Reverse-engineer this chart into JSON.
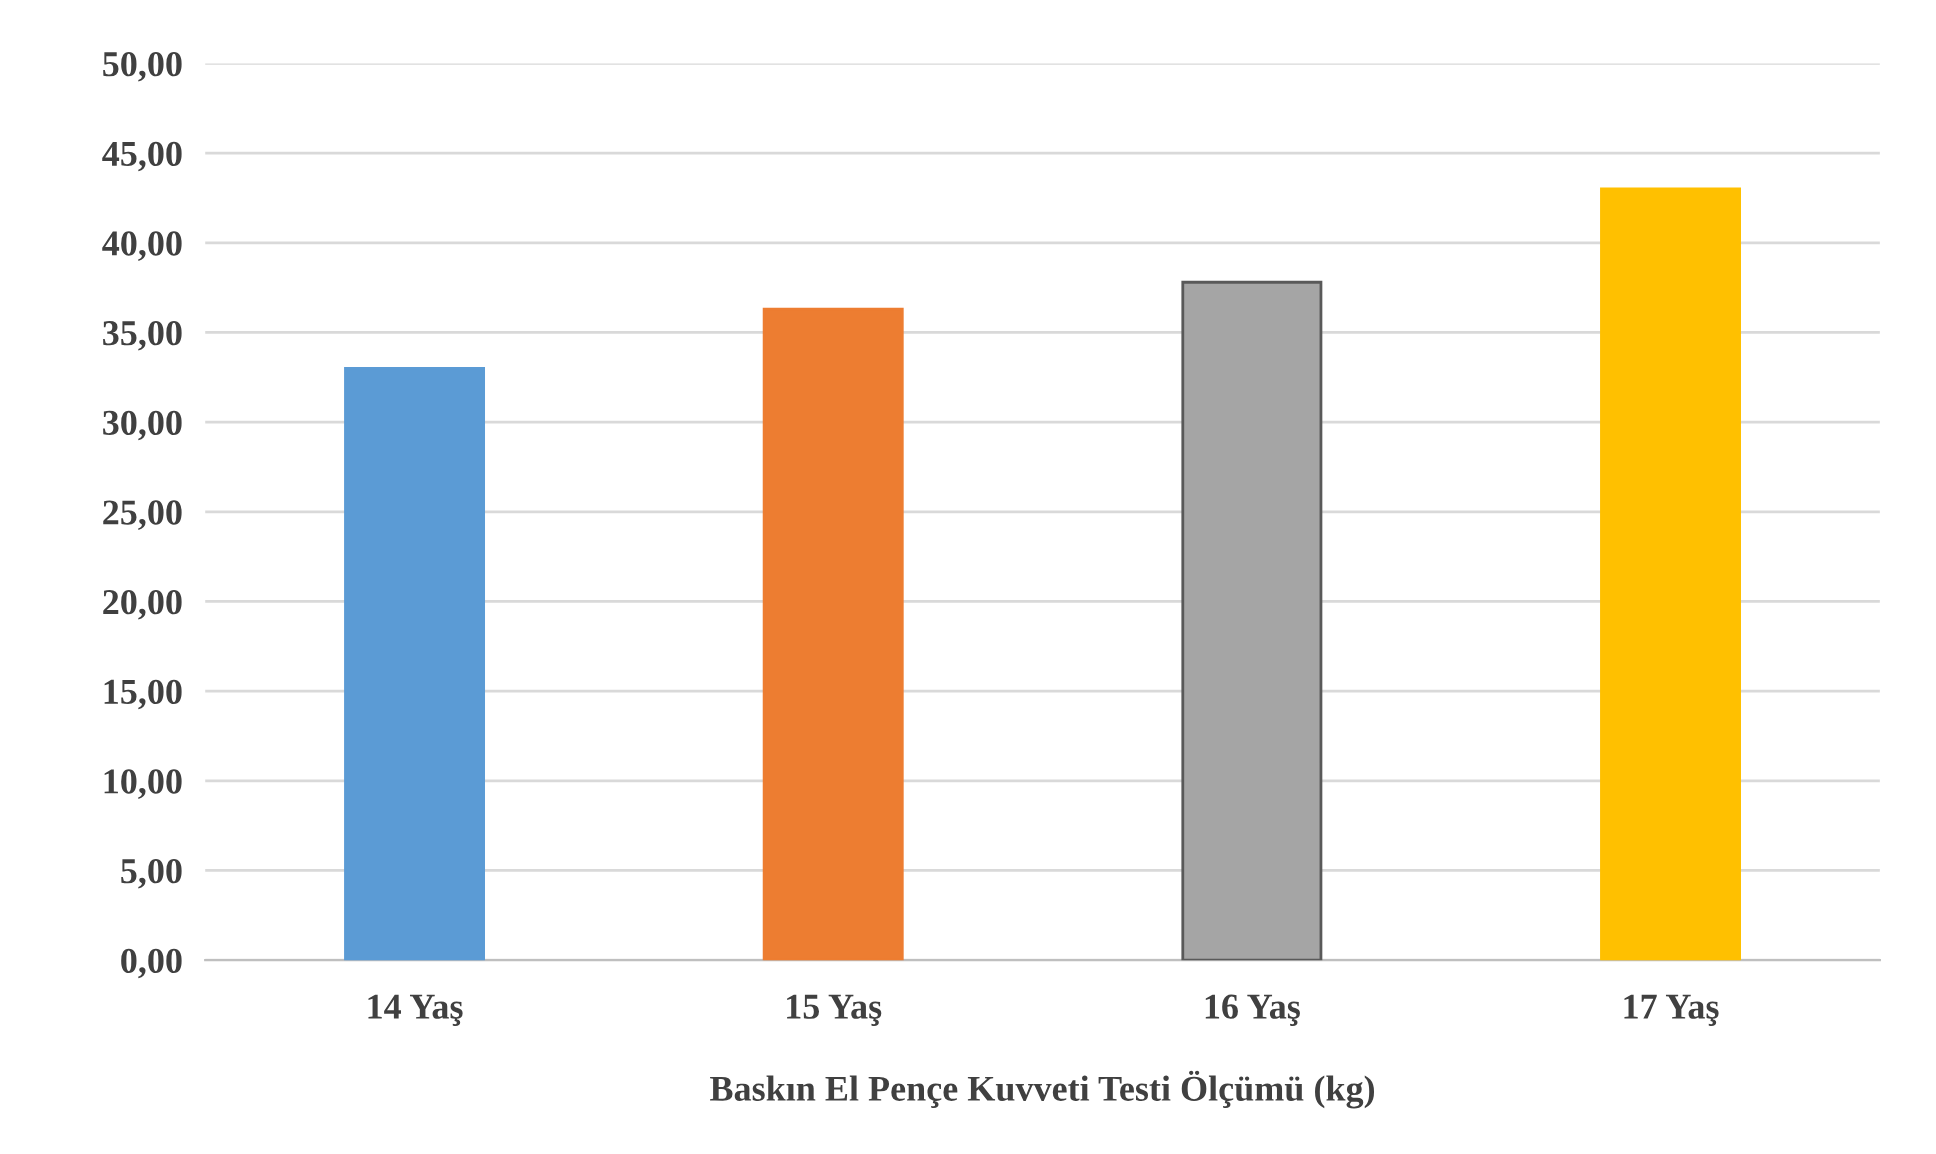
{
  "chart_data": {
    "type": "bar",
    "xlabel": "Baskın El Pençe Kuvveti Testi Ölçümü (kg)",
    "categories": [
      "14 Yaş",
      "15 Yaş",
      "16 Yaş",
      "17 Yaş"
    ],
    "values": [
      33.0,
      36.3,
      37.8,
      43.0
    ],
    "colors": [
      "#5b9bd5",
      "#ed7d31",
      "#a5a5a5",
      "#ffc000"
    ],
    "ylim": [
      0,
      50
    ],
    "yticks": [
      {
        "value": 0,
        "label": "0,00"
      },
      {
        "value": 5,
        "label": "5,00"
      },
      {
        "value": 10,
        "label": "10,00"
      },
      {
        "value": 15,
        "label": "15,00"
      },
      {
        "value": 20,
        "label": "20,00"
      },
      {
        "value": 25,
        "label": "25,00"
      },
      {
        "value": 30,
        "label": "30,00"
      },
      {
        "value": 35,
        "label": "35,00"
      },
      {
        "value": 40,
        "label": "40,00"
      },
      {
        "value": 45,
        "label": "45,00"
      },
      {
        "value": 50,
        "label": "50,00"
      }
    ],
    "grid": "y",
    "legend": false
  }
}
